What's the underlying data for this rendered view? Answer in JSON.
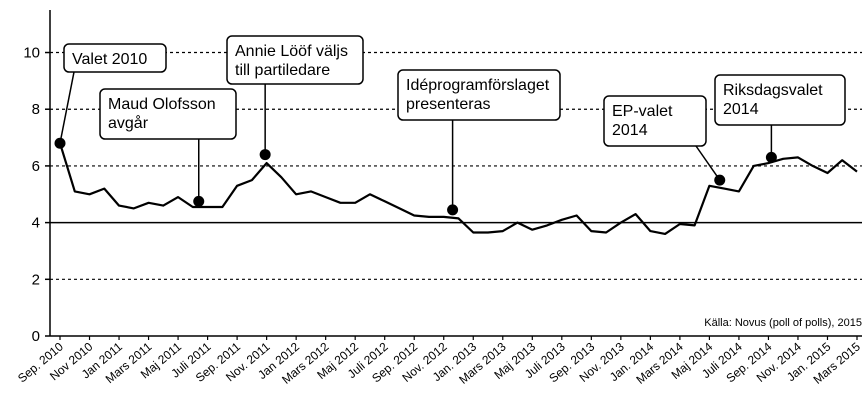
{
  "chart_data": {
    "type": "line",
    "source": "Källa: Novus (poll of polls), 2015",
    "categories": [
      "Sep. 2010",
      null,
      "Nov 2010",
      null,
      "Jan 2011",
      null,
      "Mars 2011",
      null,
      "Maj 2011",
      null,
      "Juli 2011",
      null,
      "Sep. 2011",
      null,
      "Nov. 2011",
      null,
      "Jan 2012",
      null,
      "Mars 2012",
      null,
      "Maj 2012",
      null,
      "Juli 2012",
      null,
      "Sep. 2012",
      null,
      "Nov. 2012",
      null,
      "Jan. 2013",
      null,
      "Mars 2013",
      null,
      "Maj 2013",
      null,
      "Juli 2013",
      null,
      "Sep. 2013",
      null,
      "Nov. 2013",
      null,
      "Jan. 2014",
      null,
      "Mars 2014",
      null,
      "Maj 2014",
      null,
      "Juli 2014",
      null,
      "Sep. 2014",
      null,
      "Nov. 2014",
      null,
      "Jan. 2015",
      null,
      "Mars 2015"
    ],
    "values": [
      6.8,
      5.1,
      5.0,
      5.2,
      4.6,
      4.5,
      4.7,
      4.6,
      4.9,
      4.55,
      4.55,
      4.55,
      5.3,
      5.5,
      6.1,
      5.6,
      5.0,
      5.1,
      4.9,
      4.7,
      4.7,
      5.0,
      4.75,
      4.5,
      4.25,
      4.2,
      4.2,
      4.15,
      3.65,
      3.65,
      3.7,
      4.0,
      3.75,
      3.9,
      4.1,
      4.25,
      3.7,
      3.65,
      4.0,
      4.3,
      3.7,
      3.6,
      3.95,
      3.9,
      5.3,
      5.2,
      5.1,
      6.0,
      6.1,
      6.25,
      6.3,
      6.0,
      5.75,
      6.2,
      5.8
    ],
    "color": "#000000",
    "ylim": [
      0,
      11.5
    ],
    "yticks": [
      0,
      2,
      4,
      6,
      8,
      10
    ],
    "grid": true,
    "threshold": 4,
    "annotations": [
      {
        "lines": [
          "Valet 2010"
        ],
        "index": 0,
        "value": 6.8
      },
      {
        "lines": [
          "Maud Olofsson",
          "avgår"
        ],
        "index": 9.4,
        "value": 4.75
      },
      {
        "lines": [
          "Annie Lööf väljs",
          "till partiledare"
        ],
        "index": 13.9,
        "value": 6.4
      },
      {
        "lines": [
          "Idéprogramförslaget",
          "presenteras"
        ],
        "index": 26.6,
        "value": 4.45
      },
      {
        "lines": [
          "EP-valet",
          "2014"
        ],
        "index": 44.7,
        "value": 5.5
      },
      {
        "lines": [
          "Riksdagsvalet",
          "2014"
        ],
        "index": 48.2,
        "value": 6.3
      }
    ]
  }
}
